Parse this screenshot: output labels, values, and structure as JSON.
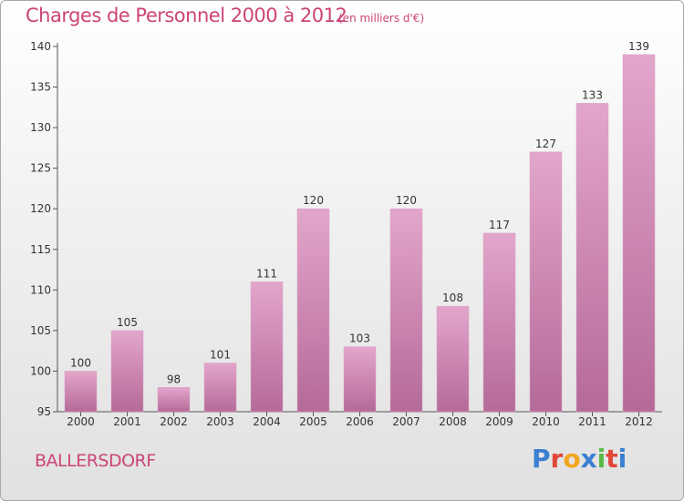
{
  "title": "Charges de Personnel 2000 à 2012",
  "subtitle": "(en milliers d'€)",
  "commune": "BALLERSDORF",
  "logo": {
    "letters": [
      "P",
      "r",
      "o",
      "x",
      "i",
      "t",
      "i"
    ],
    "colors": [
      "#3a7fd0",
      "#e0473a",
      "#f2a51e",
      "#3a7fd0",
      "#59b948",
      "#e0473a",
      "#3a7fd0"
    ]
  },
  "colors": {
    "accent": "#cc4477",
    "bar_top": "#e3a6cb",
    "bar_bottom": "#b56a98",
    "axis": "#555555"
  },
  "chart_data": {
    "type": "bar",
    "categories": [
      "2000",
      "2001",
      "2002",
      "2003",
      "2004",
      "2005",
      "2006",
      "2007",
      "2008",
      "2009",
      "2010",
      "2011",
      "2012"
    ],
    "values": [
      100,
      105,
      98,
      101,
      111,
      120,
      103,
      120,
      108,
      117,
      127,
      133,
      139
    ],
    "data_labels": [
      "100",
      "105",
      "98",
      "101",
      "111",
      "120",
      "103",
      "120",
      "108",
      "117",
      "127",
      "133",
      "139"
    ],
    "yticks": [
      "95",
      "100",
      "105",
      "110",
      "115",
      "120",
      "125",
      "130",
      "135",
      "140"
    ],
    "ylim": [
      95,
      140
    ],
    "grid": false,
    "legend": "none"
  }
}
